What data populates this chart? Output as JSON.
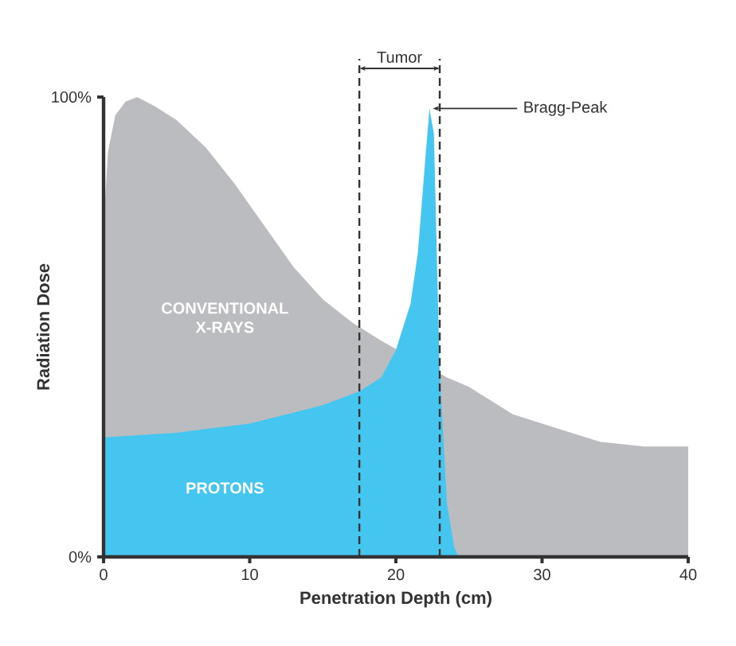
{
  "chart_data": {
    "type": "area",
    "xlabel": "Penetration Depth (cm)",
    "ylabel": "Radiation Dose",
    "xlim": [
      0,
      40
    ],
    "ylim": [
      0,
      100
    ],
    "xticks": [
      0,
      10,
      20,
      30,
      40
    ],
    "yticks": [
      {
        "value": 0,
        "label": "0%"
      },
      {
        "value": 100,
        "label": "100%"
      }
    ],
    "series": [
      {
        "name": "CONVENTIONAL X-RAYS",
        "color": "#bbbcbf",
        "x": [
          0,
          0.3,
          0.8,
          1.5,
          2.3,
          3.5,
          5,
          7,
          9,
          11,
          13,
          15,
          17,
          19,
          23.5,
          25,
          28,
          31,
          34,
          37,
          40
        ],
        "values": [
          72,
          88,
          96,
          99,
          100,
          98,
          95,
          89,
          81,
          72,
          63,
          56,
          51,
          47,
          39,
          37,
          31,
          28,
          25,
          24,
          24
        ]
      },
      {
        "name": "PROTONS",
        "color": "#45c6f0",
        "x": [
          0,
          5,
          10,
          15,
          17.5,
          19,
          20,
          21,
          21.5,
          22,
          22.3,
          22.6,
          23,
          23.5,
          24,
          24.3
        ],
        "values": [
          26,
          27,
          29,
          33,
          36,
          39,
          45,
          55,
          66,
          86,
          97.5,
          92,
          40,
          11.5,
          2,
          0
        ]
      }
    ],
    "ref_lines": [
      {
        "axis": "x",
        "value": 17.5,
        "line_style": "dashed",
        "color": "#333333"
      },
      {
        "axis": "x",
        "value": 23,
        "line_style": "dashed",
        "color": "#333333"
      }
    ],
    "annotations": [
      "Tumor",
      {
        "text": "Bragg-Peak",
        "x": 22.3,
        "y": 97.5
      }
    ]
  }
}
